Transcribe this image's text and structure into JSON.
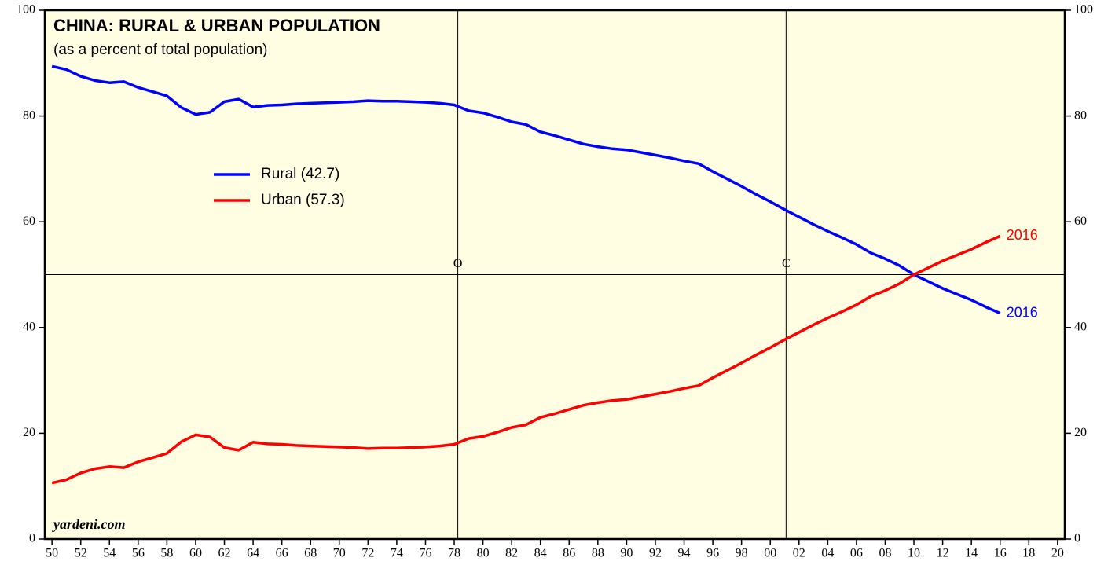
{
  "chart_data": {
    "type": "line",
    "title": "CHINA: RURAL & URBAN POPULATION",
    "subtitle": "(as a percent of total population)",
    "source": "yardeni.com",
    "x": [
      1950,
      1951,
      1952,
      1953,
      1954,
      1955,
      1956,
      1957,
      1958,
      1959,
      1960,
      1961,
      1962,
      1963,
      1964,
      1965,
      1966,
      1967,
      1968,
      1969,
      1970,
      1971,
      1972,
      1973,
      1974,
      1975,
      1976,
      1977,
      1978,
      1979,
      1980,
      1981,
      1982,
      1983,
      1984,
      1985,
      1986,
      1987,
      1988,
      1989,
      1990,
      1991,
      1992,
      1993,
      1994,
      1995,
      1996,
      1997,
      1998,
      1999,
      2000,
      2001,
      2002,
      2003,
      2004,
      2005,
      2006,
      2007,
      2008,
      2009,
      2010,
      2011,
      2012,
      2013,
      2014,
      2015,
      2016
    ],
    "series": [
      {
        "name": "Rural (42.7)",
        "color": "#0000ff",
        "values": [
          89.4,
          88.8,
          87.5,
          86.7,
          86.3,
          86.5,
          85.4,
          84.6,
          83.8,
          81.6,
          80.3,
          80.7,
          82.7,
          83.2,
          81.7,
          82.0,
          82.1,
          82.3,
          82.4,
          82.5,
          82.6,
          82.7,
          82.9,
          82.8,
          82.8,
          82.7,
          82.6,
          82.4,
          82.1,
          81.0,
          80.6,
          79.8,
          78.9,
          78.4,
          77.0,
          76.3,
          75.5,
          74.7,
          74.2,
          73.8,
          73.6,
          73.1,
          72.6,
          72.1,
          71.5,
          71.0,
          69.5,
          68.1,
          66.7,
          65.2,
          63.8,
          62.3,
          60.9,
          59.5,
          58.2,
          57.0,
          55.7,
          54.1,
          53.0,
          51.7,
          50.0,
          48.7,
          47.4,
          46.3,
          45.2,
          43.9,
          42.7
        ]
      },
      {
        "name": "Urban (57.3)",
        "color": "#ff0000",
        "values": [
          10.6,
          11.2,
          12.5,
          13.3,
          13.7,
          13.5,
          14.6,
          15.4,
          16.2,
          18.4,
          19.7,
          19.3,
          17.3,
          16.8,
          18.3,
          18.0,
          17.9,
          17.7,
          17.6,
          17.5,
          17.4,
          17.3,
          17.1,
          17.2,
          17.2,
          17.3,
          17.4,
          17.6,
          17.9,
          19.0,
          19.4,
          20.2,
          21.1,
          21.6,
          23.0,
          23.7,
          24.5,
          25.3,
          25.8,
          26.2,
          26.4,
          26.9,
          27.4,
          27.9,
          28.5,
          29.0,
          30.5,
          31.9,
          33.3,
          34.8,
          36.2,
          37.7,
          39.1,
          40.5,
          41.8,
          43.0,
          44.3,
          45.9,
          47.0,
          48.3,
          50.0,
          51.3,
          52.6,
          53.7,
          54.8,
          56.1,
          57.3
        ]
      }
    ],
    "xlim": [
      1949.5,
      2020.5
    ],
    "xticks": [
      {
        "value": 1950,
        "label": "50"
      },
      {
        "value": 1952,
        "label": "52"
      },
      {
        "value": 1954,
        "label": "54"
      },
      {
        "value": 1956,
        "label": "56"
      },
      {
        "value": 1958,
        "label": "58"
      },
      {
        "value": 1960,
        "label": "60"
      },
      {
        "value": 1962,
        "label": "62"
      },
      {
        "value": 1964,
        "label": "64"
      },
      {
        "value": 1966,
        "label": "66"
      },
      {
        "value": 1968,
        "label": "68"
      },
      {
        "value": 1970,
        "label": "70"
      },
      {
        "value": 1972,
        "label": "72"
      },
      {
        "value": 1974,
        "label": "74"
      },
      {
        "value": 1976,
        "label": "76"
      },
      {
        "value": 1978,
        "label": "78"
      },
      {
        "value": 1980,
        "label": "80"
      },
      {
        "value": 1982,
        "label": "82"
      },
      {
        "value": 1984,
        "label": "84"
      },
      {
        "value": 1986,
        "label": "86"
      },
      {
        "value": 1988,
        "label": "88"
      },
      {
        "value": 1990,
        "label": "90"
      },
      {
        "value": 1992,
        "label": "92"
      },
      {
        "value": 1994,
        "label": "94"
      },
      {
        "value": 1996,
        "label": "96"
      },
      {
        "value": 1998,
        "label": "98"
      },
      {
        "value": 2000,
        "label": "00"
      },
      {
        "value": 2002,
        "label": "02"
      },
      {
        "value": 2004,
        "label": "04"
      },
      {
        "value": 2006,
        "label": "06"
      },
      {
        "value": 2008,
        "label": "08"
      },
      {
        "value": 2010,
        "label": "10"
      },
      {
        "value": 2012,
        "label": "12"
      },
      {
        "value": 2014,
        "label": "14"
      },
      {
        "value": 2016,
        "label": "16"
      },
      {
        "value": 2018,
        "label": "18"
      },
      {
        "value": 2020,
        "label": "20"
      }
    ],
    "ylim": [
      0,
      100
    ],
    "yticks": [
      0,
      20,
      40,
      60,
      80,
      100
    ],
    "hline": 50,
    "annotations": [
      {
        "label": "O",
        "x": 1978.25
      },
      {
        "label": "C",
        "x": 2001.1
      }
    ],
    "grid": false
  }
}
